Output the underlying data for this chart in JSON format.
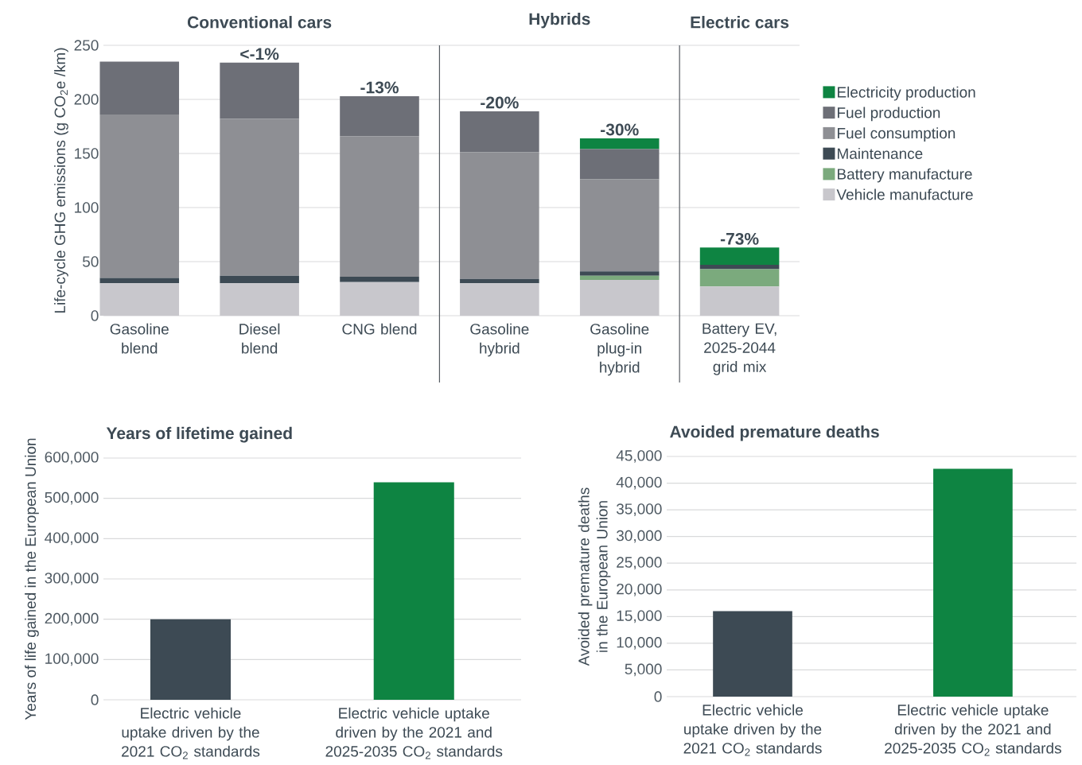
{
  "chart_data": [
    {
      "type": "bar",
      "stacked": true,
      "ylabel": "Life-cycle GHG emissions (g CO$_{2}$e /km)",
      "categories": [
        "Gasoline blend",
        "Diesel blend",
        "CNG blend",
        "Gasoline hybrid",
        "Gasoline plug-in hybrid",
        "Battery EV, 2025-2044 grid mix"
      ],
      "series": [
        {
          "name": "Vehicle manufacture",
          "color": "#c8c7cc",
          "values": [
            30,
            30,
            31,
            30,
            33,
            27
          ]
        },
        {
          "name": "Battery manufacture",
          "color": "#7baa7d",
          "values": [
            0,
            0,
            0,
            0,
            4,
            16
          ]
        },
        {
          "name": "Maintenance",
          "color": "#3d4a54",
          "values": [
            5,
            7,
            5,
            4,
            4,
            4
          ]
        },
        {
          "name": "Fuel consumption",
          "color": "#8e8f94",
          "values": [
            151,
            145,
            130,
            117,
            85,
            0
          ]
        },
        {
          "name": "Fuel production",
          "color": "#6d6f77",
          "values": [
            49,
            52,
            37,
            38,
            28,
            0
          ]
        },
        {
          "name": "Electricity production",
          "color": "#0e8442",
          "values": [
            0,
            0,
            0,
            0,
            10,
            16
          ]
        }
      ],
      "annotations": [
        "Conventional cars",
        "Hybrids",
        "Electric cars",
        {
          "text": "<-1%",
          "x": "Diesel blend",
          "y": 234
        },
        {
          "text": "-13%",
          "x": "CNG blend",
          "y": 203
        },
        {
          "text": "-20%",
          "x": "Gasoline hybrid",
          "y": 189
        },
        {
          "text": "-30%",
          "x": "Gasoline plug-in hybrid",
          "y": 164
        },
        {
          "text": "-73%",
          "x": "Battery EV, 2025-2044 grid mix",
          "y": 63
        }
      ],
      "ylim": [
        0,
        250
      ],
      "yticks": [
        0,
        50,
        100,
        150,
        200,
        250
      ],
      "grid": "y",
      "legend": "right"
    },
    {
      "type": "bar",
      "title": "Years of lifetime gained",
      "ylabel": "Years of life gained in the European Union",
      "categories": [
        "Electric vehicle uptake driven by the 2021 CO$_{2}$ standards",
        "Electric vehicle uptake driven by the 2021 and 2025-2035 CO$_{2}$ standards"
      ],
      "values": [
        200000,
        540000
      ],
      "colors": [
        "#3d4a54",
        "#0e8442"
      ],
      "ylim": [
        0,
        600000
      ],
      "yticks": [
        0,
        {
          "value": 100000,
          "label": "100,000"
        },
        {
          "value": 200000,
          "label": "200,000"
        },
        {
          "value": 300000,
          "label": "300,000"
        },
        {
          "value": 400000,
          "label": "400,000"
        },
        {
          "value": 500000,
          "label": "500,000"
        },
        {
          "value": 600000,
          "label": "600,000"
        }
      ],
      "grid": "y"
    },
    {
      "type": "bar",
      "title": "Avoided premature deaths",
      "ylabel": "Avoided premature deaths in the European Union",
      "categories": [
        "Electric vehicle uptake driven by the 2021 CO$_{2}$ standards",
        "Electric vehicle uptake driven by the 2021 and 2025-2035 CO$_{2}$ standards"
      ],
      "values": [
        16000,
        42700
      ],
      "colors": [
        "#3d4a54",
        "#0e8442"
      ],
      "ylim": [
        0,
        45000
      ],
      "yticks": [
        0,
        {
          "value": 5000,
          "label": "5,000"
        },
        {
          "value": 10000,
          "label": "10,000"
        },
        {
          "value": 15000,
          "label": "15,000"
        },
        {
          "value": 20000,
          "label": "20,000"
        },
        {
          "value": 25000,
          "label": "25,000"
        },
        {
          "value": 30000,
          "label": "30,000"
        },
        {
          "value": 35000,
          "label": "35,000"
        },
        {
          "value": 40000,
          "label": "40,000"
        },
        {
          "value": 45000,
          "label": "45,000"
        }
      ],
      "grid": "y"
    }
  ]
}
